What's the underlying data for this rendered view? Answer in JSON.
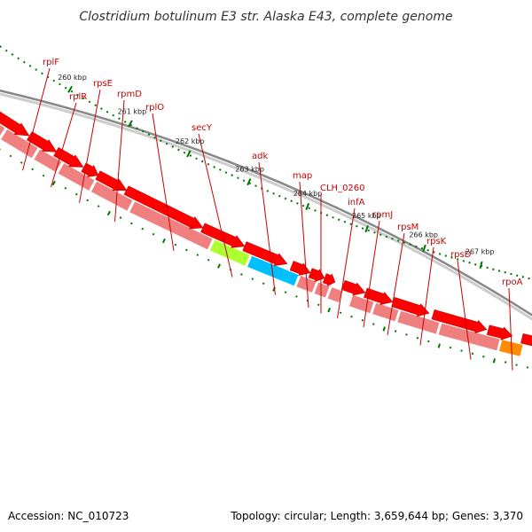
{
  "title": "Clostridium botulinum E3 str. Alaska E43, complete genome",
  "footer": {
    "accession": "Accession: NC_010723",
    "topology": "Topology: circular; Length: 3,659,644 bp; Genes: 3,370"
  },
  "colors": {
    "gene_default": "#f08080",
    "gene_secY": "#adff2f",
    "gene_adk": "#00bfff",
    "gene_rpoA": "#ff8c00",
    "cds": "#ff0000",
    "label": "#cc0000",
    "tick": "#007700",
    "backbone": "#999999"
  },
  "genes": [
    {
      "label": "rplF"
    },
    {
      "label": "rplR"
    },
    {
      "label": "rpsE"
    },
    {
      "label": "rpmD"
    },
    {
      "label": "rplO"
    },
    {
      "label": "secY"
    },
    {
      "label": "adk"
    },
    {
      "label": "map"
    },
    {
      "label": "CLH_0260"
    },
    {
      "label": "infA"
    },
    {
      "label": "rpmJ"
    },
    {
      "label": "rpsM"
    },
    {
      "label": "rpsK"
    },
    {
      "label": "rpsD"
    },
    {
      "label": "rpoA"
    }
  ],
  "kbp_labels": [
    "260 kbp",
    "261 kbp",
    "262 kbp",
    "263 kbp",
    "264 kbp",
    "265 kbp",
    "266 kbp",
    "267 kbp"
  ]
}
